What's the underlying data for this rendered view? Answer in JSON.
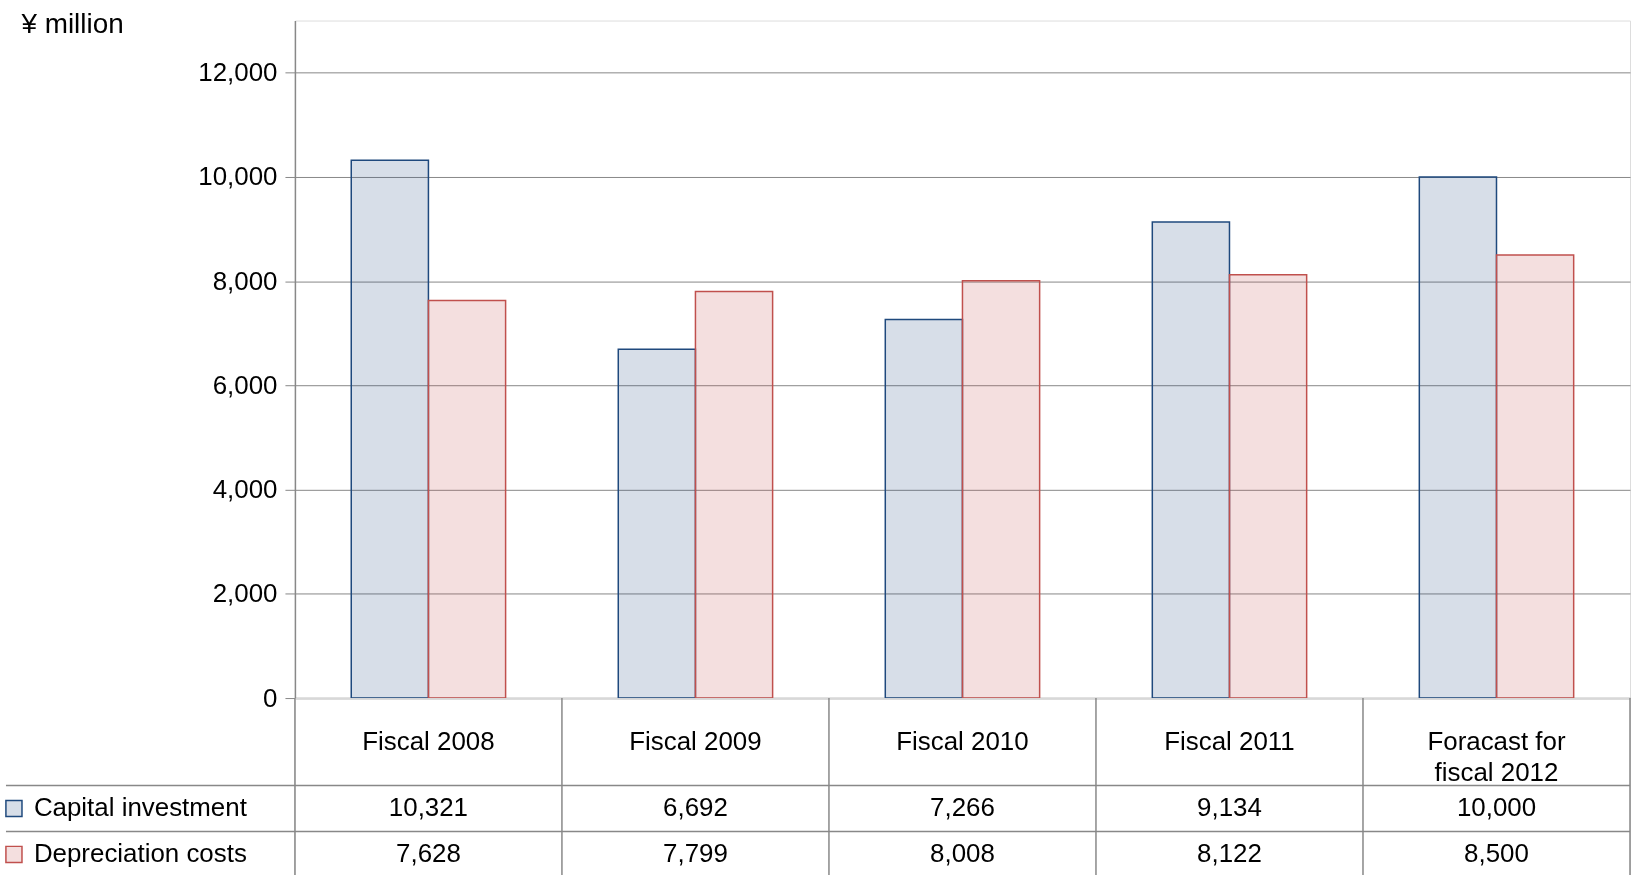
{
  "chart_data": {
    "type": "bar",
    "ylabel": "¥ million",
    "categories": [
      "Fiscal 2008",
      "Fiscal 2009",
      "Fiscal 2010",
      "Fiscal 2011",
      "Foracast for fiscal 2012"
    ],
    "series": [
      {
        "name": "Capital investment",
        "color": "#1f497d",
        "values": [
          10321,
          6692,
          7266,
          9134,
          10000
        ],
        "value_labels": [
          "10,321",
          "6,692",
          "7,266",
          "9,134",
          "10,000"
        ]
      },
      {
        "name": "Depreciation costs",
        "color": "#c0504d",
        "values": [
          7628,
          7799,
          8008,
          8122,
          8500
        ],
        "value_labels": [
          "7,628",
          "7,799",
          "8,008",
          "8,122",
          "8,500"
        ]
      }
    ],
    "ylim": [
      0,
      13000
    ],
    "yticks": [
      0,
      {
        "value": 2000,
        "label": "2,000"
      },
      {
        "value": 4000,
        "label": "4,000"
      },
      {
        "value": 6000,
        "label": "6,000"
      },
      {
        "value": 8000,
        "label": "8,000"
      },
      {
        "value": 10000,
        "label": "10,000"
      },
      {
        "value": 12000,
        "label": "12,000"
      }
    ],
    "grid": "y",
    "legend": "bottom"
  }
}
